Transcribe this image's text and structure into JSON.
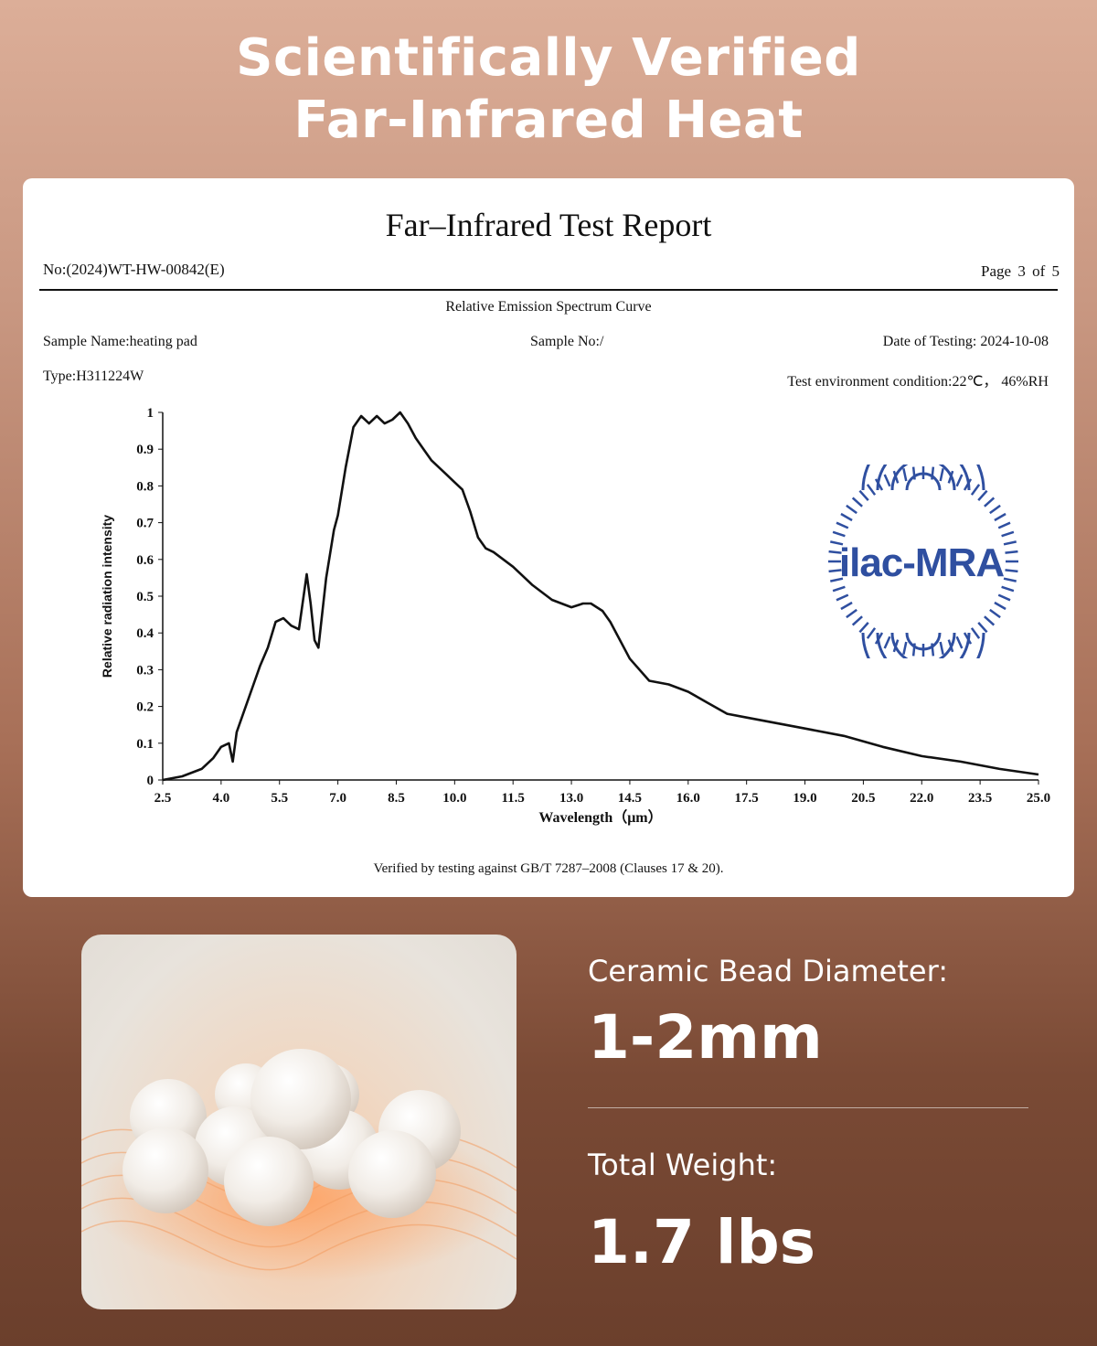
{
  "headline": {
    "line1": "Scientifically Verified",
    "line2": "Far-Infrared Heat"
  },
  "report": {
    "title": "Far–Infrared Test Report",
    "number": "No:(2024)WT-HW-00842(E)",
    "page": "Page 3 of 5",
    "curve_title": "Relative Emission Spectrum Curve",
    "sample_name": "Sample Name:heating pad",
    "sample_no": "Sample No:/",
    "date": "Date of Testing: 2024-10-08",
    "type": "Type:H311224W",
    "environment": "Test environment condition:22℃， 46%RH",
    "footer": "Verified by testing against GB/T 7287–2008 (Clauses 17 & 20).",
    "seal_text": "ilac-MRA",
    "seal_color": "#2f4fa0"
  },
  "chart_data": {
    "type": "line",
    "xlabel": "Wavelength（μm）",
    "ylabel": "Relative radiation intensity",
    "xlim": [
      2.5,
      25.0
    ],
    "ylim": [
      0,
      1
    ],
    "x_ticks": [
      "2.5",
      "4.0",
      "5.5",
      "7.0",
      "8.5",
      "10.0",
      "11.5",
      "13.0",
      "14.5",
      "16.0",
      "17.5",
      "19.0",
      "20.5",
      "22.0",
      "23.5",
      "25.0"
    ],
    "y_ticks": [
      "0",
      "0.1",
      "0.2",
      "0.3",
      "0.4",
      "0.5",
      "0.6",
      "0.7",
      "0.8",
      "0.9",
      "1"
    ],
    "grid": false,
    "series": [
      {
        "color": "#111111",
        "x": [
          2.5,
          3.0,
          3.5,
          3.8,
          4.0,
          4.2,
          4.3,
          4.4,
          4.6,
          4.8,
          5.0,
          5.2,
          5.4,
          5.6,
          5.8,
          6.0,
          6.2,
          6.3,
          6.4,
          6.5,
          6.7,
          6.9,
          7.0,
          7.2,
          7.4,
          7.6,
          7.8,
          8.0,
          8.2,
          8.4,
          8.6,
          8.8,
          9.0,
          9.2,
          9.4,
          9.6,
          9.8,
          10.0,
          10.2,
          10.4,
          10.6,
          10.8,
          11.0,
          11.5,
          12.0,
          12.5,
          13.0,
          13.3,
          13.5,
          13.8,
          14.0,
          14.5,
          15.0,
          15.5,
          16.0,
          16.5,
          17.0,
          17.5,
          18.0,
          19.0,
          20.0,
          21.0,
          22.0,
          23.0,
          24.0,
          25.0
        ],
        "y": [
          0.0,
          0.01,
          0.03,
          0.06,
          0.09,
          0.1,
          0.05,
          0.13,
          0.19,
          0.25,
          0.31,
          0.36,
          0.43,
          0.44,
          0.42,
          0.41,
          0.56,
          0.48,
          0.38,
          0.36,
          0.55,
          0.68,
          0.72,
          0.85,
          0.96,
          0.99,
          0.97,
          0.99,
          0.97,
          0.98,
          1.0,
          0.97,
          0.93,
          0.9,
          0.87,
          0.85,
          0.83,
          0.81,
          0.79,
          0.73,
          0.66,
          0.63,
          0.62,
          0.58,
          0.53,
          0.49,
          0.47,
          0.48,
          0.48,
          0.46,
          0.43,
          0.33,
          0.27,
          0.26,
          0.24,
          0.21,
          0.18,
          0.17,
          0.16,
          0.14,
          0.12,
          0.09,
          0.065,
          0.05,
          0.03,
          0.015
        ]
      }
    ]
  },
  "specs": {
    "diameter_label": "Ceramic Bead Diameter:",
    "diameter_value": "1-2mm",
    "weight_label": "Total Weight:",
    "weight_value": "1.7 lbs"
  },
  "photo": {
    "subject": "ceramic-beads"
  }
}
